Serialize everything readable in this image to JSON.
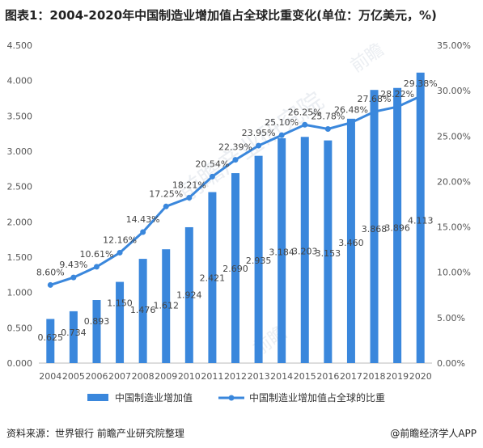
{
  "title": "图表1：2004-2020年中国制造业增加值占全球比重变化(单位：万亿美元，%)",
  "source": "资料来源：世界银行 前瞻产业研究院整理",
  "brand": "@前瞻经济学人APP",
  "colors": {
    "bar": "#3a87dc",
    "line": "#3a87dc"
  },
  "chart_data": {
    "type": "bar+line",
    "categories": [
      "2004",
      "2005",
      "2006",
      "2007",
      "2008",
      "2009",
      "2010",
      "2011",
      "2012",
      "2013",
      "2014",
      "2015",
      "2016",
      "2017",
      "2018",
      "2019",
      "2020"
    ],
    "series": [
      {
        "name": "中国制造业增加值",
        "type": "bar",
        "axis": "left",
        "values": [
          0.625,
          0.734,
          0.893,
          1.15,
          1.476,
          1.612,
          1.924,
          2.421,
          2.69,
          2.935,
          3.184,
          3.203,
          3.153,
          3.46,
          3.868,
          3.896,
          4.113
        ],
        "labels": [
          "0.625",
          "0.734",
          "0.893",
          "1.150",
          "1.476",
          "1.612",
          "1.924",
          "2.421",
          "2.690",
          "2.935",
          "3.184",
          "3.203",
          "3.153",
          "3.460",
          "3.868",
          "3.896",
          "4.113"
        ]
      },
      {
        "name": "中国制造业增加值占全球的比重",
        "type": "line",
        "axis": "right",
        "values": [
          8.6,
          9.43,
          10.61,
          12.16,
          14.43,
          17.25,
          18.21,
          20.54,
          22.39,
          23.95,
          25.1,
          26.25,
          25.78,
          26.48,
          27.68,
          28.22,
          29.38
        ],
        "labels": [
          "8.60%",
          "9.43%",
          "10.61%",
          "12.16%",
          "14.43%",
          "17.25%",
          "18.21%",
          "20.54%",
          "22.39%",
          "23.95%",
          "25.10%",
          "26.25%",
          "25.78%",
          "26.48%",
          "27.68%",
          "28.22%",
          "29.38%"
        ]
      }
    ],
    "y_left": {
      "min": 0,
      "max": 4.5,
      "ticks": [
        "0.000",
        "0.500",
        "1.000",
        "1.500",
        "2.000",
        "2.500",
        "3.000",
        "3.500",
        "4.000",
        "4.500"
      ]
    },
    "y_right": {
      "min": 0,
      "max": 35,
      "ticks": [
        "0.00%",
        "5.00%",
        "10.00%",
        "15.00%",
        "20.00%",
        "25.00%",
        "30.00%",
        "35.00%"
      ]
    },
    "legend_position": "bottom",
    "grid": false
  }
}
